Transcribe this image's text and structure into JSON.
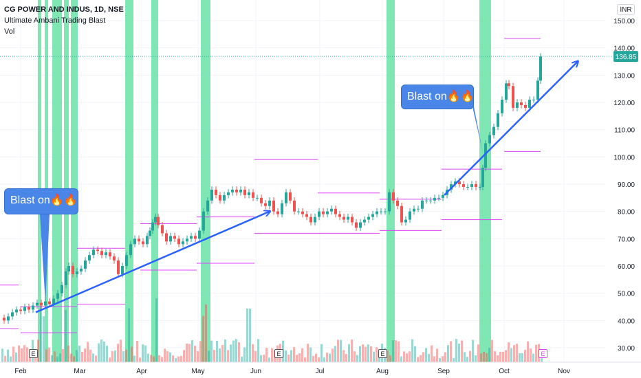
{
  "legend": {
    "symbol": "CG POWER AND INDUS, 1D, NSE",
    "indicator": "Ultimate Ambani Trading Blast",
    "volume": "Vol"
  },
  "currency": "INR",
  "last_price": "136.85",
  "annotations": {
    "bubble1": "Blast on🔥🔥",
    "bubble2": "Blast on🔥🔥",
    "earnings_marker": "E"
  },
  "colors": {
    "up": "#26a69a",
    "down": "#ef5350",
    "highlight": "#69e3a6",
    "levels": "#e040fb",
    "trend": "#2962ff",
    "last_price_bg": "#26a69a"
  },
  "chart_data": {
    "type": "candlestick",
    "y_axis": {
      "ticks": [
        "150.00",
        "140.00",
        "130.00",
        "120.00",
        "110.00",
        "100.00",
        "90.00",
        "80.00",
        "70.00",
        "60.00",
        "50.00",
        "40.00",
        "30.00"
      ],
      "range": [
        25,
        155
      ]
    },
    "x_axis": {
      "ticks": [
        "Feb",
        "Mar",
        "Apr",
        "May",
        "Jun",
        "Jul",
        "Aug",
        "Sep",
        "Oct",
        "Nov"
      ]
    },
    "close_series": [
      [
        0,
        41
      ],
      [
        6,
        40
      ],
      [
        12,
        41.5
      ],
      [
        18,
        43
      ],
      [
        24,
        44
      ],
      [
        30,
        43.5
      ],
      [
        36,
        45
      ],
      [
        42,
        44
      ],
      [
        48,
        45.5
      ],
      [
        54,
        46.5
      ],
      [
        60,
        45.5
      ],
      [
        66,
        47
      ],
      [
        72,
        46
      ],
      [
        78,
        48
      ],
      [
        84,
        50
      ],
      [
        90,
        53
      ],
      [
        96,
        58
      ],
      [
        100,
        60
      ],
      [
        106,
        57
      ],
      [
        112,
        58
      ],
      [
        118,
        59
      ],
      [
        124,
        62
      ],
      [
        130,
        64
      ],
      [
        136,
        66
      ],
      [
        142,
        65.5
      ],
      [
        148,
        64
      ],
      [
        154,
        65
      ],
      [
        160,
        63.5
      ],
      [
        166,
        62
      ],
      [
        172,
        57
      ],
      [
        178,
        60
      ],
      [
        184,
        64
      ],
      [
        190,
        68
      ],
      [
        196,
        70
      ],
      [
        202,
        69
      ],
      [
        208,
        68
      ],
      [
        214,
        71
      ],
      [
        218,
        73
      ],
      [
        222,
        76
      ],
      [
        226,
        78
      ],
      [
        230,
        75
      ],
      [
        236,
        72
      ],
      [
        242,
        69
      ],
      [
        248,
        71
      ],
      [
        254,
        70
      ],
      [
        260,
        68
      ],
      [
        266,
        69
      ],
      [
        272,
        70
      ],
      [
        278,
        71
      ],
      [
        284,
        70
      ],
      [
        290,
        73
      ],
      [
        296,
        80
      ],
      [
        302,
        84
      ],
      [
        308,
        88
      ],
      [
        314,
        86
      ],
      [
        320,
        84
      ],
      [
        326,
        86
      ],
      [
        332,
        87
      ],
      [
        338,
        88
      ],
      [
        344,
        87
      ],
      [
        350,
        88
      ],
      [
        356,
        86
      ],
      [
        362,
        87
      ],
      [
        368,
        85
      ],
      [
        374,
        85
      ],
      [
        380,
        83
      ],
      [
        386,
        82
      ],
      [
        392,
        84
      ],
      [
        398,
        80
      ],
      [
        404,
        79
      ],
      [
        410,
        83
      ],
      [
        416,
        87
      ],
      [
        422,
        84
      ],
      [
        428,
        80
      ],
      [
        434,
        80
      ],
      [
        440,
        79
      ],
      [
        446,
        78
      ],
      [
        452,
        76
      ],
      [
        458,
        78
      ],
      [
        464,
        80
      ],
      [
        470,
        79
      ],
      [
        476,
        80
      ],
      [
        482,
        81
      ],
      [
        488,
        79
      ],
      [
        494,
        78
      ],
      [
        500,
        77
      ],
      [
        506,
        78
      ],
      [
        512,
        76
      ],
      [
        518,
        74
      ],
      [
        524,
        76
      ],
      [
        530,
        77
      ],
      [
        536,
        78
      ],
      [
        542,
        79
      ],
      [
        548,
        80
      ],
      [
        554,
        80
      ],
      [
        560,
        80
      ],
      [
        566,
        87
      ],
      [
        572,
        84
      ],
      [
        578,
        82
      ],
      [
        584,
        76
      ],
      [
        590,
        77
      ],
      [
        596,
        80
      ],
      [
        602,
        81
      ],
      [
        608,
        81
      ],
      [
        614,
        84
      ],
      [
        620,
        84
      ],
      [
        626,
        84
      ],
      [
        632,
        85
      ],
      [
        638,
        85
      ],
      [
        644,
        86
      ],
      [
        650,
        88
      ],
      [
        656,
        90
      ],
      [
        662,
        91
      ],
      [
        668,
        90
      ],
      [
        674,
        89
      ],
      [
        680,
        89
      ],
      [
        686,
        90
      ],
      [
        692,
        89
      ],
      [
        698,
        89
      ],
      [
        702,
        96
      ],
      [
        706,
        105
      ],
      [
        712,
        108
      ],
      [
        718,
        111
      ],
      [
        724,
        116
      ],
      [
        730,
        121
      ],
      [
        736,
        127
      ],
      [
        740,
        126
      ],
      [
        746,
        118
      ],
      [
        752,
        120
      ],
      [
        758,
        119
      ],
      [
        764,
        118
      ],
      [
        770,
        121
      ],
      [
        776,
        121
      ],
      [
        782,
        128
      ],
      [
        786,
        136.85
      ]
    ],
    "highlight_bands_px": "omitted",
    "blast_labels": [
      "Blast on🔥🔥",
      "Blast on🔥🔥"
    ],
    "last_value": 136.85
  }
}
